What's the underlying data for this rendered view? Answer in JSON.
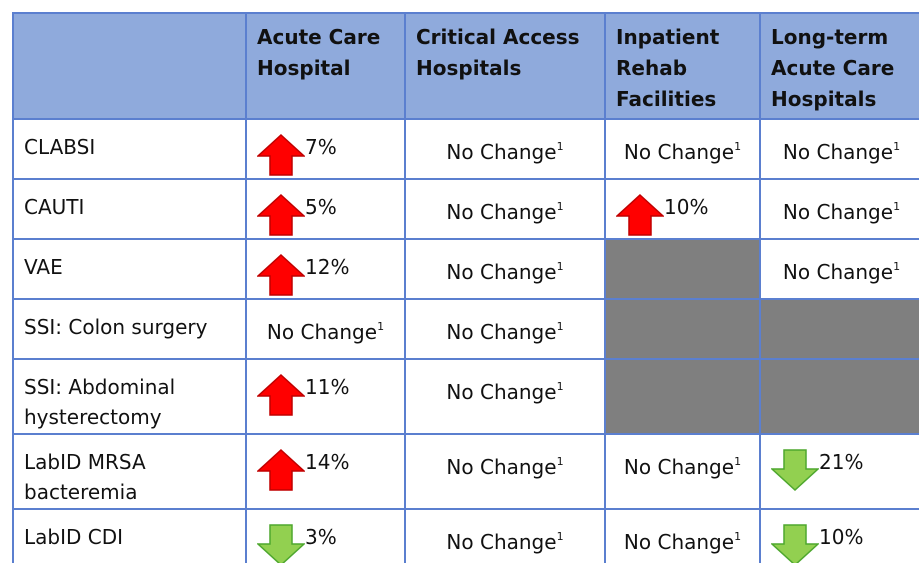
{
  "table": {
    "header": [
      "Acute Care Hospital",
      "Critical Access Hospitals",
      "Inpatient Rehab Facilities",
      "Long-term Acute Care Hospitals"
    ],
    "rows": [
      {
        "label": "CLABSI",
        "cells": [
          {
            "arrow": "up",
            "text": "7%"
          },
          {
            "text": "No Change",
            "note": "1"
          },
          {
            "text": "No Change",
            "note": "1"
          },
          {
            "text": "No Change",
            "note": "1"
          }
        ]
      },
      {
        "label": "CAUTI",
        "cells": [
          {
            "arrow": "up",
            "text": "5%"
          },
          {
            "text": "No Change",
            "note": "1"
          },
          {
            "arrow": "up",
            "text": "10%"
          },
          {
            "text": "No Change",
            "note": "1"
          }
        ]
      },
      {
        "label": "VAE",
        "cells": [
          {
            "arrow": "up",
            "text": "12%"
          },
          {
            "text": "No Change",
            "note": "1"
          },
          null,
          {
            "text": "No Change",
            "note": "1"
          }
        ]
      },
      {
        "label": "SSI: Colon surgery",
        "cells": [
          {
            "text": "No Change",
            "note": "1"
          },
          {
            "text": "No Change",
            "note": "1"
          },
          null,
          null
        ]
      },
      {
        "label": "SSI: Abdominal hysterectomy",
        "cells": [
          {
            "arrow": "up",
            "text": "11%"
          },
          {
            "text": "No Change",
            "note": "1"
          },
          null,
          null
        ]
      },
      {
        "label": "LabID MRSA bacteremia",
        "cells": [
          {
            "arrow": "up",
            "text": "14%"
          },
          {
            "text": "No Change",
            "note": "1"
          },
          {
            "text": "No Change",
            "note": "1"
          },
          {
            "arrow": "down",
            "text": "21%"
          }
        ]
      },
      {
        "label": "LabID CDI",
        "cells": [
          {
            "arrow": "down",
            "text": "3%"
          },
          {
            "text": "No Change",
            "note": "1"
          },
          {
            "text": "No Change",
            "note": "1"
          },
          {
            "arrow": "down",
            "text": "10%"
          }
        ]
      }
    ]
  }
}
